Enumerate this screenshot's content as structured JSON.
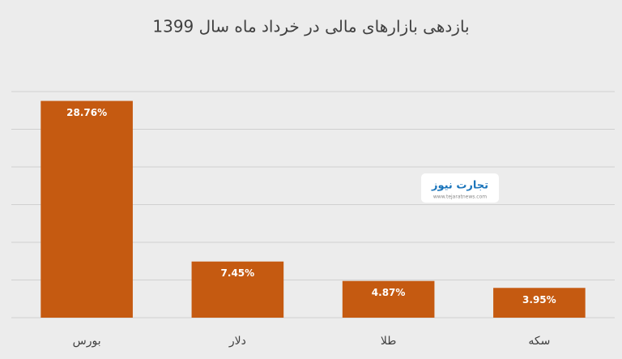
{
  "chart_data": {
    "type": "bar",
    "title": "بازدهی بازارهای مالی در خرداد ماه سال 1399",
    "categories": [
      "بورس",
      "دلار",
      "طلا",
      "سکه"
    ],
    "values": [
      28.76,
      7.45,
      4.87,
      3.95
    ],
    "value_labels": [
      "28.76%",
      "7.45%",
      "4.87%",
      "3.95%"
    ],
    "color": "#c55a11",
    "ylim": [
      0,
      30
    ],
    "yticks": [
      0,
      5,
      10,
      15,
      20,
      25,
      30
    ],
    "grid": true
  },
  "watermark": {
    "name": "تجارت نیوز",
    "url": "www.tejaratnews.com"
  }
}
